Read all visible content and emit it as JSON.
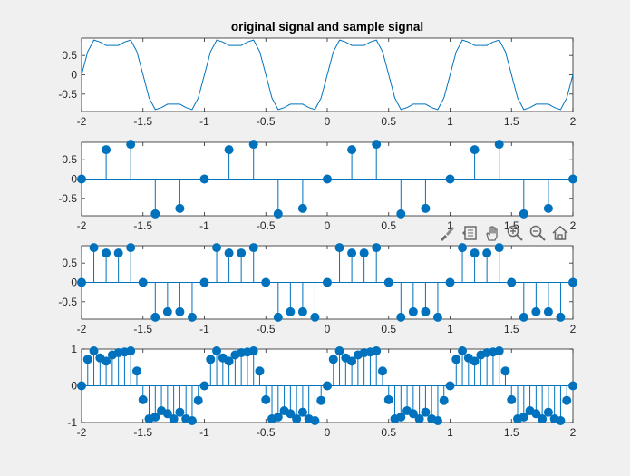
{
  "figure": {
    "background": "#f0f0f0",
    "axes_color": "#262626",
    "series_color": "#0072bd"
  },
  "toolbar": {
    "icons": [
      "brush-icon",
      "data-tips-icon",
      "pan-hand-icon",
      "zoom-in-icon",
      "zoom-out-icon",
      "home-icon"
    ]
  },
  "chart_data": [
    {
      "type": "line",
      "title": "original signal and sample signal",
      "xlim": [
        -2,
        2
      ],
      "ylim": [
        -0.95,
        0.95
      ],
      "xticks": [
        -2,
        -1.5,
        -1,
        -0.5,
        0,
        0.5,
        1,
        1.5,
        2
      ],
      "xtick_labels": [
        "-2",
        "-1.5",
        "-1",
        "-0.5",
        "0",
        "0.5",
        "1",
        "1.5",
        "2"
      ],
      "yticks": [
        0.5,
        0,
        -0.5
      ],
      "ytick_labels": [
        "0.5",
        "0",
        "-0.5"
      ],
      "x": [
        -2,
        -1.95,
        -1.9,
        -1.85,
        -1.8,
        -1.75,
        -1.7,
        -1.65,
        -1.6,
        -1.55,
        -1.5,
        -1.45,
        -1.4,
        -1.35,
        -1.3,
        -1.25,
        -1.2,
        -1.15,
        -1.1,
        -1.05,
        -1,
        -0.95,
        -0.9,
        -0.85,
        -0.8,
        -0.75,
        -0.7,
        -0.65,
        -0.6,
        -0.55,
        -0.5,
        -0.45,
        -0.4,
        -0.35,
        -0.3,
        -0.25,
        -0.2,
        -0.15,
        -0.1,
        -0.05,
        0,
        0.05,
        0.1,
        0.15,
        0.2,
        0.25,
        0.3,
        0.35,
        0.4,
        0.45,
        0.5,
        0.55,
        0.6,
        0.65,
        0.7,
        0.75,
        0.8,
        0.85,
        0.9,
        0.95,
        1,
        1.05,
        1.1,
        1.15,
        1.2,
        1.25,
        1.3,
        1.35,
        1.4,
        1.45,
        1.5,
        1.55,
        1.6,
        1.65,
        1.7,
        1.75,
        1.8,
        1.85,
        1.9,
        1.95,
        2
      ],
      "y": [
        0,
        0.6,
        0.9,
        0.85,
        0.76,
        0.76,
        0.76,
        0.85,
        0.9,
        0.6,
        0,
        -0.6,
        -0.9,
        -0.85,
        -0.76,
        -0.76,
        -0.76,
        -0.85,
        -0.9,
        -0.6,
        0,
        0.6,
        0.9,
        0.85,
        0.76,
        0.76,
        0.76,
        0.85,
        0.9,
        0.6,
        0,
        -0.6,
        -0.9,
        -0.85,
        -0.76,
        -0.76,
        -0.76,
        -0.85,
        -0.9,
        -0.6,
        0,
        0.6,
        0.9,
        0.85,
        0.76,
        0.76,
        0.76,
        0.85,
        0.9,
        0.6,
        0,
        -0.6,
        -0.9,
        -0.85,
        -0.76,
        -0.76,
        -0.76,
        -0.85,
        -0.9,
        -0.6,
        0,
        0.6,
        0.9,
        0.85,
        0.76,
        0.76,
        0.76,
        0.85,
        0.9,
        0.6,
        0,
        -0.6,
        -0.9,
        -0.85,
        -0.76,
        -0.76,
        -0.76,
        -0.85,
        -0.9,
        -0.6,
        0
      ]
    },
    {
      "type": "stem",
      "xlim": [
        -2,
        2
      ],
      "ylim": [
        -0.95,
        0.95
      ],
      "xticks": [
        -2,
        -1.5,
        -1,
        -0.5,
        0,
        0.5,
        1,
        1.5,
        2
      ],
      "xtick_labels": [
        "-2",
        "-1.5",
        "-1",
        "-0.5",
        "0",
        "0.5",
        "1",
        "1.5",
        "2"
      ],
      "yticks": [
        0.5,
        0,
        -0.5
      ],
      "ytick_labels": [
        "0.5",
        "0",
        "-0.5"
      ],
      "x": [
        -2,
        -1.8,
        -1.6,
        -1.4,
        -1.2,
        -1,
        -0.8,
        -0.6,
        -0.4,
        -0.2,
        0,
        0.2,
        0.4,
        0.6,
        0.8,
        1,
        1.2,
        1.4,
        1.6,
        1.8,
        2
      ],
      "y": [
        0,
        0.76,
        0.9,
        -0.9,
        -0.76,
        0,
        0.76,
        0.9,
        -0.9,
        -0.76,
        0,
        0.76,
        0.9,
        -0.9,
        -0.76,
        0,
        0.76,
        0.9,
        -0.9,
        -0.76,
        0
      ]
    },
    {
      "type": "stem",
      "xlim": [
        -2,
        2
      ],
      "ylim": [
        -0.95,
        0.95
      ],
      "xticks": [
        -2,
        -1.5,
        -1,
        -0.5,
        0,
        0.5,
        1,
        1.5,
        2
      ],
      "xtick_labels": [
        "-2",
        "-1.5",
        "-1",
        "-0.5",
        "0",
        "0.5",
        "1",
        "1.5",
        "2"
      ],
      "yticks": [
        0.5,
        0,
        -0.5
      ],
      "ytick_labels": [
        "0.5",
        "0",
        "-0.5"
      ],
      "x": [
        -2,
        -1.9,
        -1.8,
        -1.7,
        -1.6,
        -1.5,
        -1.4,
        -1.3,
        -1.2,
        -1.1,
        -1,
        -0.9,
        -0.8,
        -0.7,
        -0.6,
        -0.5,
        -0.4,
        -0.3,
        -0.2,
        -0.1,
        0,
        0.1,
        0.2,
        0.3,
        0.4,
        0.5,
        0.6,
        0.7,
        0.8,
        0.9,
        1,
        1.1,
        1.2,
        1.3,
        1.4,
        1.5,
        1.6,
        1.7,
        1.8,
        1.9,
        2
      ],
      "y": [
        0,
        0.9,
        0.76,
        0.76,
        0.9,
        0,
        -0.9,
        -0.76,
        -0.76,
        -0.9,
        0,
        0.9,
        0.76,
        0.76,
        0.9,
        0,
        -0.9,
        -0.76,
        -0.76,
        -0.9,
        0,
        0.9,
        0.76,
        0.76,
        0.9,
        0,
        -0.9,
        -0.76,
        -0.76,
        -0.9,
        0,
        0.9,
        0.76,
        0.76,
        0.9,
        0,
        -0.9,
        -0.76,
        -0.76,
        -0.9,
        0
      ]
    },
    {
      "type": "stem",
      "xlim": [
        -2,
        2
      ],
      "ylim": [
        -1,
        1
      ],
      "xticks": [
        -2,
        -1.5,
        -1,
        -0.5,
        0,
        0.5,
        1,
        1.5,
        2
      ],
      "xtick_labels": [
        "-2",
        "-1.5",
        "-1",
        "-0.5",
        "0",
        "0.5",
        "1",
        "1.5",
        "2"
      ],
      "yticks": [
        1,
        0,
        -1
      ],
      "ytick_labels": [
        "1",
        "0",
        "-1"
      ],
      "x": [
        -2,
        -1.95,
        -1.9,
        -1.85,
        -1.8,
        -1.75,
        -1.7,
        -1.65,
        -1.6,
        -1.55,
        -1.5,
        -1.45,
        -1.4,
        -1.35,
        -1.3,
        -1.25,
        -1.2,
        -1.15,
        -1.1,
        -1.05,
        -1,
        -0.95,
        -0.9,
        -0.85,
        -0.8,
        -0.75,
        -0.7,
        -0.65,
        -0.6,
        -0.55,
        -0.5,
        -0.45,
        -0.4,
        -0.35,
        -0.3,
        -0.25,
        -0.2,
        -0.15,
        -0.1,
        -0.05,
        0,
        0.05,
        0.1,
        0.15,
        0.2,
        0.25,
        0.3,
        0.35,
        0.4,
        0.45,
        0.5,
        0.55,
        0.6,
        0.65,
        0.7,
        0.75,
        0.8,
        0.85,
        0.9,
        0.95,
        1,
        1.05,
        1.1,
        1.15,
        1.2,
        1.25,
        1.3,
        1.35,
        1.4,
        1.45,
        1.5,
        1.55,
        1.6,
        1.65,
        1.7,
        1.75,
        1.8,
        1.85,
        1.9,
        1.95,
        2
      ],
      "y": [
        0,
        0.72,
        0.95,
        0.76,
        0.67,
        0.84,
        0.9,
        0.92,
        0.95,
        0.4,
        -0.38,
        -0.9,
        -0.85,
        -0.68,
        -0.76,
        -0.9,
        -0.72,
        -0.9,
        -0.95,
        -0.4,
        0,
        0.72,
        0.95,
        0.76,
        0.67,
        0.84,
        0.9,
        0.92,
        0.95,
        0.4,
        -0.38,
        -0.9,
        -0.85,
        -0.68,
        -0.76,
        -0.9,
        -0.72,
        -0.9,
        -0.95,
        -0.4,
        0,
        0.72,
        0.95,
        0.76,
        0.67,
        0.84,
        0.9,
        0.92,
        0.95,
        0.4,
        -0.38,
        -0.9,
        -0.85,
        -0.68,
        -0.76,
        -0.9,
        -0.72,
        -0.9,
        -0.95,
        -0.4,
        0,
        0.72,
        0.95,
        0.76,
        0.67,
        0.84,
        0.9,
        0.92,
        0.95,
        0.4,
        -0.38,
        -0.9,
        -0.85,
        -0.68,
        -0.76,
        -0.9,
        -0.72,
        -0.9,
        -0.95,
        -0.4,
        0
      ]
    }
  ]
}
